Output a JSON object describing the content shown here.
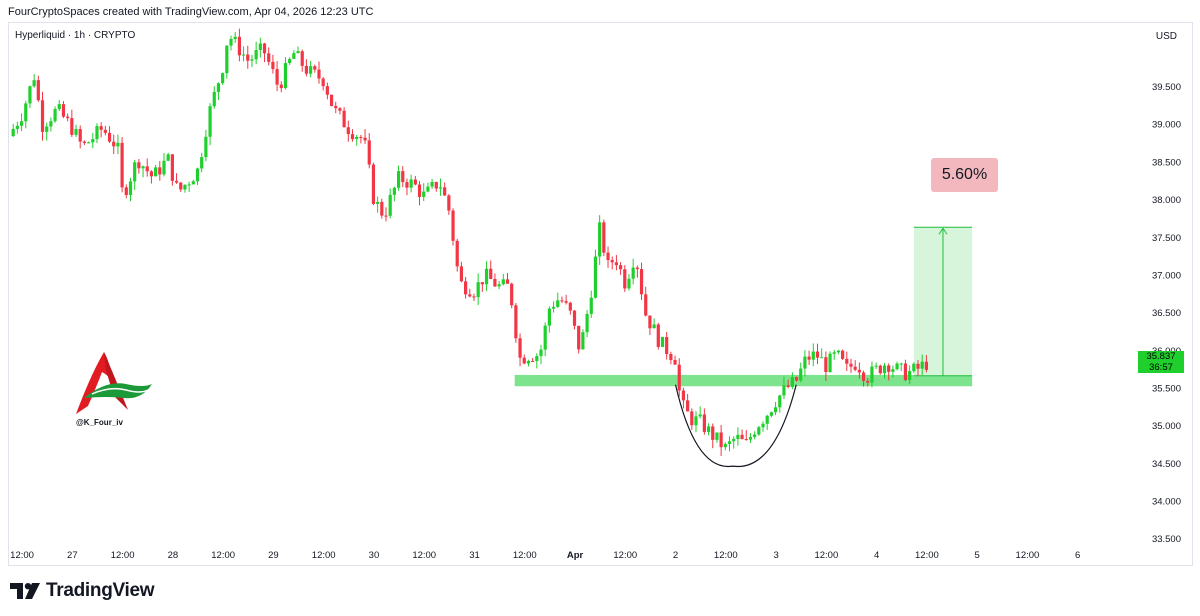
{
  "header": {
    "caption": "FourCryptoSpaces created with TradingView.com, Apr 04, 2026 12:23 UTC",
    "symbol": "Hyperliquid · 1h · CRYPTO",
    "currency": "USD"
  },
  "chart_data": {
    "type": "candlestick",
    "y_ticks": [
      "39.500",
      "39.000",
      "38.500",
      "38.000",
      "37.500",
      "37.000",
      "36.500",
      "36.000",
      "35.500",
      "35.000",
      "34.500",
      "34.000",
      "33.500"
    ],
    "y_tick_values": [
      39.5,
      39.0,
      38.5,
      38.0,
      37.5,
      37.0,
      36.5,
      36.0,
      35.5,
      35.0,
      34.5,
      34.0,
      33.5
    ],
    "ylim": [
      33.45,
      40.35
    ],
    "x_ticks": [
      {
        "label": "12:00",
        "t": 0.0
      },
      {
        "label": "27",
        "t": 0.5
      },
      {
        "label": "12:00",
        "t": 1.0
      },
      {
        "label": "28",
        "t": 1.5
      },
      {
        "label": "12:00",
        "t": 2.0
      },
      {
        "label": "29",
        "t": 2.5
      },
      {
        "label": "12:00",
        "t": 3.0
      },
      {
        "label": "30",
        "t": 3.5
      },
      {
        "label": "12:00",
        "t": 4.0
      },
      {
        "label": "31",
        "t": 4.5
      },
      {
        "label": "12:00",
        "t": 5.0
      },
      {
        "label": "Apr",
        "t": 5.5
      },
      {
        "label": "12:00",
        "t": 6.0
      },
      {
        "label": "2",
        "t": 6.5
      },
      {
        "label": "12:00",
        "t": 7.0
      },
      {
        "label": "3",
        "t": 7.5
      },
      {
        "label": "12:00",
        "t": 8.0
      },
      {
        "label": "4",
        "t": 8.5
      },
      {
        "label": "12:00",
        "t": 9.0
      },
      {
        "label": "5",
        "t": 9.5
      },
      {
        "label": "12:00",
        "t": 10.0
      },
      {
        "label": "6",
        "t": 10.5
      }
    ],
    "xlim": [
      -0.13,
      11.06
    ],
    "close_path": [
      [
        -0.13,
        38.85
      ],
      [
        0.0,
        39.15
      ],
      [
        0.12,
        39.65
      ],
      [
        0.2,
        39.0
      ],
      [
        0.35,
        39.2
      ],
      [
        0.5,
        38.95
      ],
      [
        0.6,
        38.7
      ],
      [
        0.8,
        38.95
      ],
      [
        0.95,
        38.7
      ],
      [
        1.0,
        38.05
      ],
      [
        1.15,
        38.55
      ],
      [
        1.3,
        38.3
      ],
      [
        1.45,
        38.55
      ],
      [
        1.55,
        38.1
      ],
      [
        1.75,
        38.4
      ],
      [
        1.85,
        39.1
      ],
      [
        2.0,
        39.8
      ],
      [
        2.05,
        40.2
      ],
      [
        2.25,
        39.85
      ],
      [
        2.4,
        40.0
      ],
      [
        2.55,
        39.5
      ],
      [
        2.7,
        39.95
      ],
      [
        2.85,
        39.7
      ],
      [
        3.0,
        39.6
      ],
      [
        3.1,
        39.2
      ],
      [
        3.25,
        38.95
      ],
      [
        3.4,
        38.8
      ],
      [
        3.5,
        38.0
      ],
      [
        3.6,
        37.8
      ],
      [
        3.75,
        38.3
      ],
      [
        3.9,
        38.2
      ],
      [
        4.0,
        38.05
      ],
      [
        4.15,
        38.25
      ],
      [
        4.25,
        37.85
      ],
      [
        4.35,
        36.9
      ],
      [
        4.5,
        36.8
      ],
      [
        4.6,
        37.0
      ],
      [
        4.75,
        36.85
      ],
      [
        4.85,
        36.85
      ],
      [
        4.95,
        35.9
      ],
      [
        5.05,
        35.95
      ],
      [
        5.15,
        35.95
      ],
      [
        5.25,
        36.6
      ],
      [
        5.35,
        36.7
      ],
      [
        5.45,
        36.5
      ],
      [
        5.55,
        36.0
      ],
      [
        5.65,
        36.7
      ],
      [
        5.75,
        37.65
      ],
      [
        5.82,
        37.1
      ],
      [
        5.9,
        37.25
      ],
      [
        6.0,
        36.9
      ],
      [
        6.1,
        37.3
      ],
      [
        6.2,
        36.5
      ],
      [
        6.35,
        36.1
      ],
      [
        6.5,
        35.9
      ],
      [
        6.55,
        35.3
      ],
      [
        6.65,
        35.1
      ],
      [
        6.75,
        35.05
      ],
      [
        6.85,
        34.9
      ],
      [
        7.0,
        34.7
      ],
      [
        7.1,
        34.85
      ],
      [
        7.2,
        34.75
      ],
      [
        7.3,
        35.0
      ],
      [
        7.4,
        35.15
      ],
      [
        7.5,
        35.35
      ],
      [
        7.6,
        35.5
      ],
      [
        7.7,
        35.6
      ],
      [
        7.8,
        35.9
      ],
      [
        7.9,
        35.95
      ],
      [
        8.0,
        35.8
      ],
      [
        8.1,
        35.95
      ],
      [
        8.2,
        35.75
      ],
      [
        8.3,
        35.85
      ],
      [
        8.4,
        35.65
      ],
      [
        8.5,
        35.75
      ],
      [
        8.6,
        35.85
      ],
      [
        8.7,
        35.75
      ],
      [
        8.8,
        35.7
      ],
      [
        8.9,
        35.75
      ],
      [
        9.0,
        35.84
      ]
    ],
    "support_zone": {
      "t_start": 4.9,
      "t_end": 9.45,
      "y_low": 35.53,
      "y_high": 35.68
    },
    "cup_curve": {
      "t_start": 6.5,
      "t_bottom": 7.07,
      "t_end": 7.7,
      "y_top": 35.55,
      "y_bottom": 34.47
    },
    "target_box": {
      "t_start": 8.87,
      "t_end": 9.45,
      "y_low": 35.67,
      "y_high": 37.64,
      "label": "5.60%"
    },
    "current_price": {
      "value": "35.837",
      "countdown": "36:57",
      "y": 35.84
    },
    "colors": {
      "up": "#089981",
      "up_body": "#1fd02d",
      "down": "#f23645",
      "zone": "#6fe081",
      "target": "#d6f5da",
      "target_line": "#1fbf3a",
      "pct_box": "#f2b8bd"
    }
  },
  "watermark": {
    "handle": "@K_Four_iv"
  },
  "branding": {
    "name": "TradingView"
  }
}
